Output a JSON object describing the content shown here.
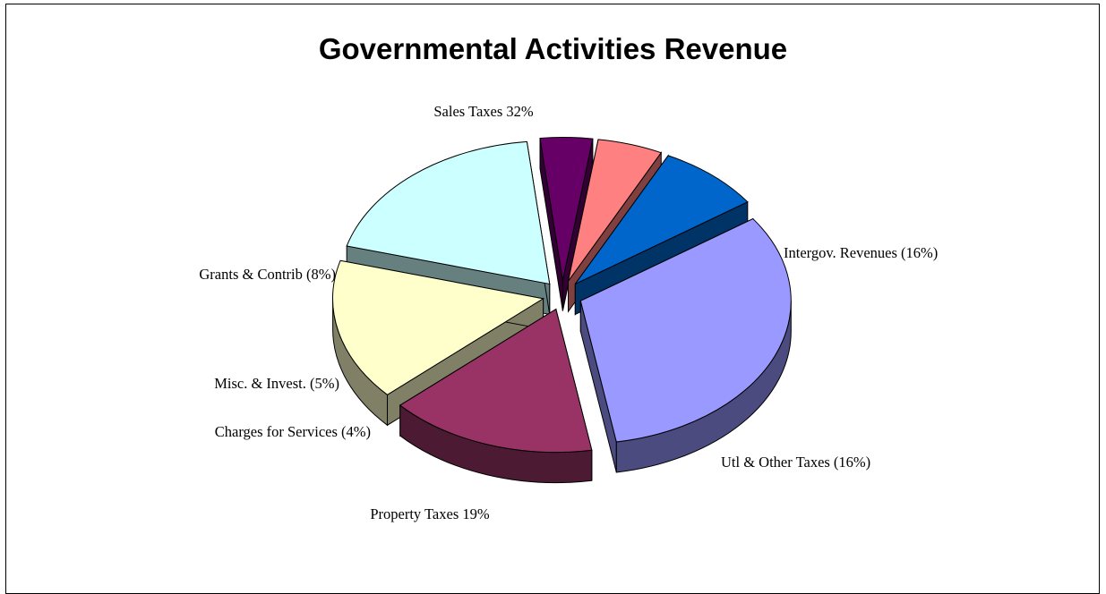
{
  "chart_data": {
    "type": "pie",
    "title": "Governmental Activities Revenue",
    "slices": [
      {
        "label": "Sales Taxes 32%",
        "value": 32,
        "color": "#9999ff",
        "side_color": "#4b4b80"
      },
      {
        "label": "Intergov. Revenues (16%)",
        "value": 16,
        "color": "#993366",
        "side_color": "#4d1a33"
      },
      {
        "label": "Utl & Other Taxes (16%)",
        "value": 16,
        "color": "#ffffcc",
        "side_color": "#808066"
      },
      {
        "label": "Property Taxes 19%",
        "value": 19,
        "color": "#ccffff",
        "side_color": "#668080"
      },
      {
        "label": "Charges for Services (4%)",
        "value": 4,
        "color": "#660066",
        "side_color": "#330033"
      },
      {
        "label": "Misc. & Invest. (5%)",
        "value": 5,
        "color": "#ff8080",
        "side_color": "#804040"
      },
      {
        "label": "Grants & Contrib (8%)",
        "value": 8,
        "color": "#0066cc",
        "side_color": "#003366"
      }
    ]
  }
}
